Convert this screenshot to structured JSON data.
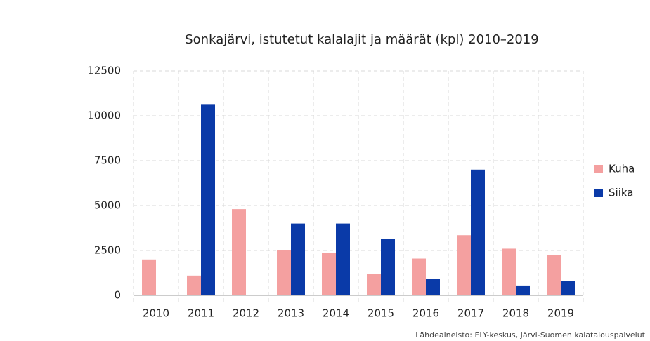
{
  "chart_data": {
    "type": "bar",
    "title": "Sonkajärvi, istutetut kalalajit ja määrät (kpl) 2010–2019",
    "source": "Lähdeaineisto: ELY-keskus, Järvi-Suomen kalatalouspalvelut",
    "categories": [
      "2010",
      "2011",
      "2012",
      "2013",
      "2014",
      "2015",
      "2016",
      "2017",
      "2018",
      "2019"
    ],
    "series": [
      {
        "name": "Kuha",
        "color": "#f4a0a0",
        "values": [
          2000,
          1100,
          4800,
          2500,
          2350,
          1200,
          2050,
          3350,
          2600,
          2250
        ]
      },
      {
        "name": "Siika",
        "color": "#0a3aa8",
        "values": [
          0,
          10650,
          0,
          4000,
          4000,
          3150,
          900,
          7000,
          550,
          800
        ]
      }
    ],
    "ylim": [
      0,
      12500
    ],
    "yticks": [
      0,
      2500,
      5000,
      7500,
      10000,
      12500
    ],
    "grid": true,
    "legend": "right"
  }
}
